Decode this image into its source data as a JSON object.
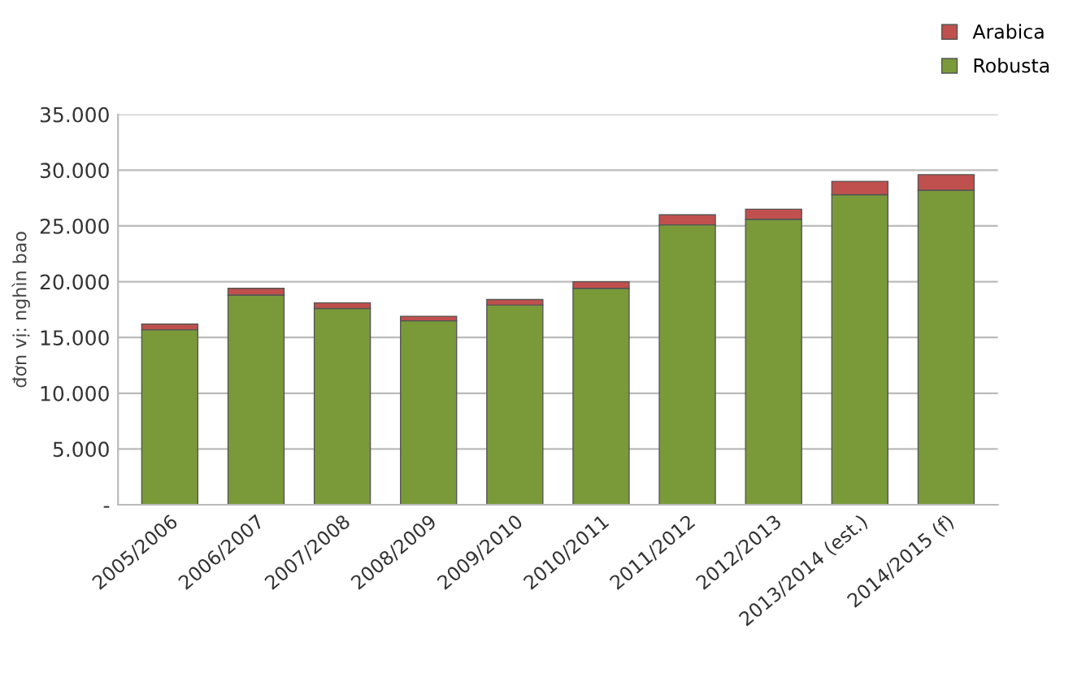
{
  "chart_data": {
    "type": "bar",
    "stacked": true,
    "ylabel": "đơn vị: nghìn bao",
    "categories": [
      "2005/2006",
      "2006/2007",
      "2007/2008",
      "2008/2009",
      "2009/2010",
      "2010/2011",
      "2011/2012",
      "2012/2013",
      "2013/2014 (est.)",
      "2014/2015 (f)"
    ],
    "series": [
      {
        "name": "Robusta",
        "color": "#7a9a3a",
        "values": [
          15700,
          18800,
          17600,
          16500,
          17900,
          19400,
          25100,
          25600,
          27800,
          28200
        ]
      },
      {
        "name": "Arabica",
        "color": "#c0504d",
        "values": [
          500,
          600,
          500,
          400,
          500,
          600,
          900,
          900,
          1200,
          1400
        ]
      }
    ],
    "ylim": [
      0,
      35000
    ],
    "yticks": [
      {
        "value": 0,
        "label": "-"
      },
      {
        "value": 5000,
        "label": "5.000"
      },
      {
        "value": 10000,
        "label": "10.000"
      },
      {
        "value": 15000,
        "label": "15.000"
      },
      {
        "value": 20000,
        "label": "20.000"
      },
      {
        "value": 25000,
        "label": "25.000"
      },
      {
        "value": 30000,
        "label": "30.000"
      },
      {
        "value": 35000,
        "label": "35.000"
      }
    ],
    "grid": "y",
    "legend": "top right"
  }
}
